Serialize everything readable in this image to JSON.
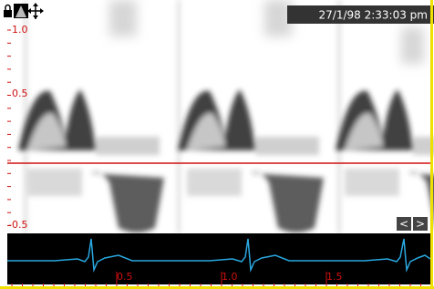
{
  "header": {
    "timestamp": "27/1/98 2:33:03 pm"
  },
  "velocity_scale": {
    "labels": [
      "1.0",
      "0.5",
      "-0.5"
    ]
  },
  "time_scale": {
    "labels": [
      "0.5",
      "1.0",
      "1.5"
    ]
  },
  "controls": {
    "prev": "<",
    "next": ">"
  }
}
